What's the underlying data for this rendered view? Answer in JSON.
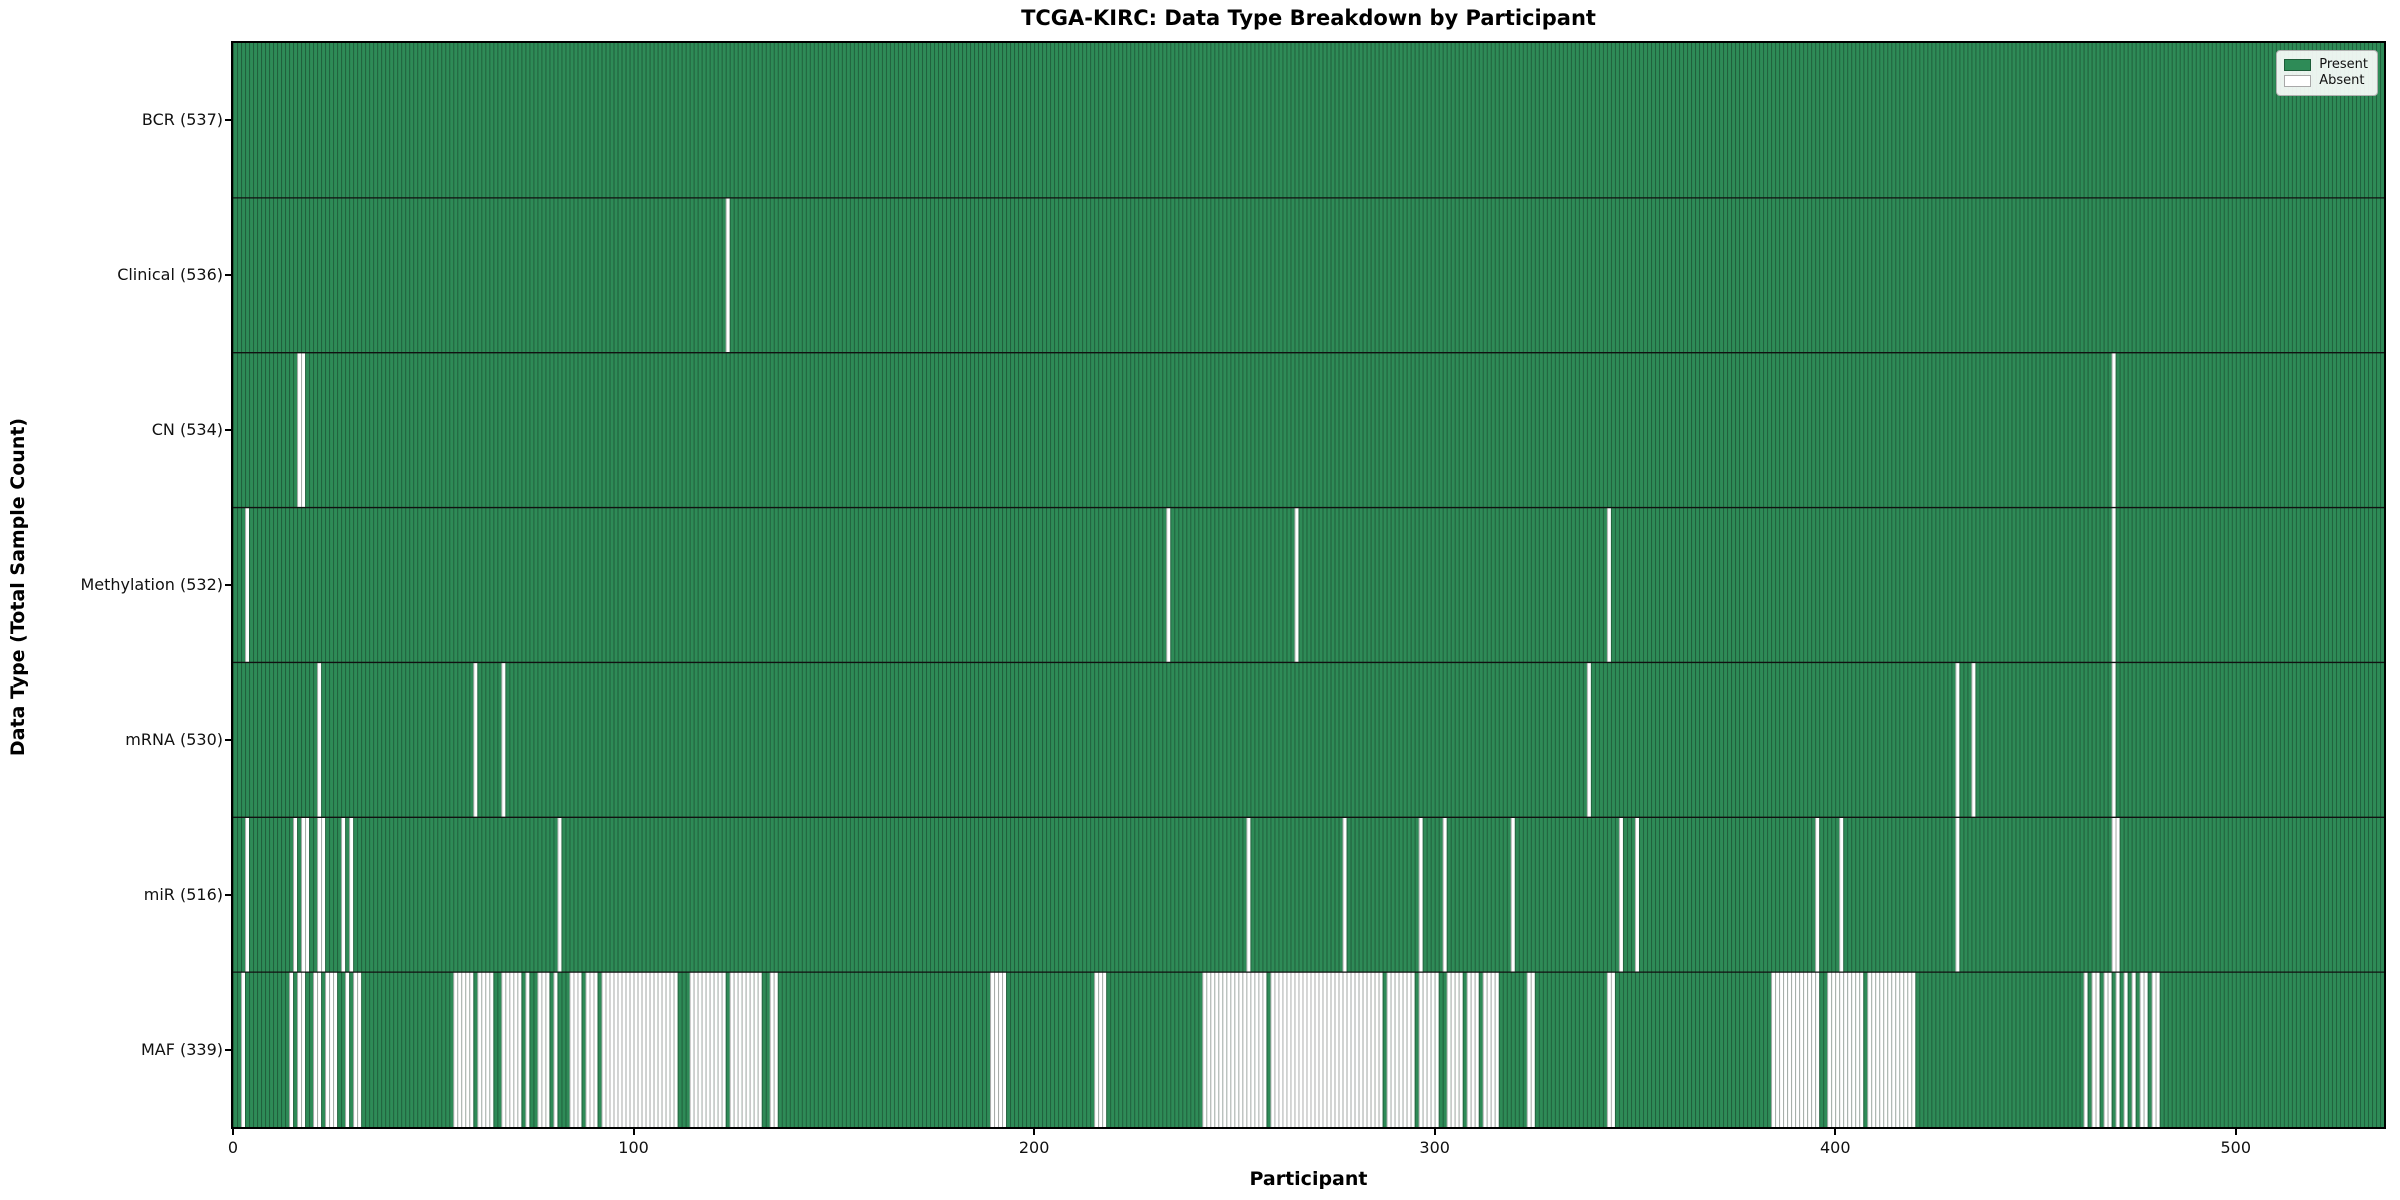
{
  "title": "TCGA-KIRC: Data Type Breakdown by Participant",
  "xlabel": "Participant",
  "ylabel": "Data Type (Total Sample Count)",
  "legend": {
    "present_label": "Present",
    "absent_label": "Absent"
  },
  "colors": {
    "present": "#2e8b57",
    "absent": "#ffffff",
    "bar_edge": "rgba(0,0,0,0.33)",
    "row_separator": "#111111",
    "axes_border": "#000000"
  },
  "chart_data": {
    "type": "heatmap",
    "x_ticks": [
      0,
      100,
      200,
      300,
      400,
      500
    ],
    "n_participants": 537,
    "legend_entries": [
      "Present",
      "Absent"
    ],
    "legend_position": "upper right",
    "rows": [
      {
        "label": "BCR (537)",
        "data_type": "BCR",
        "total": 537,
        "absent": []
      },
      {
        "label": "Clinical (536)",
        "data_type": "Clinical",
        "total": 536,
        "absent": [
          123
        ]
      },
      {
        "label": "CN (534)",
        "data_type": "CN",
        "total": 534,
        "absent": [
          16,
          17,
          469
        ]
      },
      {
        "label": "Methylation (532)",
        "data_type": "Methylation",
        "total": 532,
        "absent": [
          3,
          233,
          265,
          343,
          469
        ]
      },
      {
        "label": "mRNA (530)",
        "data_type": "mRNA",
        "total": 530,
        "absent": [
          21,
          60,
          67,
          338,
          430,
          434,
          469
        ]
      },
      {
        "label": "miR (516)",
        "data_type": "miR",
        "total": 516,
        "absent": [
          3,
          15,
          17,
          18,
          21,
          22,
          27,
          29,
          81,
          253,
          277,
          296,
          302,
          319,
          346,
          350,
          395,
          401,
          430,
          469,
          470
        ]
      },
      {
        "label": "MAF (339)",
        "data_type": "MAF",
        "total": 339,
        "absent": [
          2,
          14,
          16,
          17,
          20,
          21,
          [
            23,
            25
          ],
          28,
          30,
          31,
          [
            55,
            59
          ],
          [
            61,
            64
          ],
          [
            67,
            71
          ],
          73,
          [
            76,
            78
          ],
          80,
          [
            84,
            86
          ],
          [
            88,
            90
          ],
          [
            92,
            110
          ],
          [
            114,
            122
          ],
          [
            124,
            131
          ],
          [
            134,
            135
          ],
          [
            189,
            192
          ],
          [
            215,
            217
          ],
          [
            242,
            257
          ],
          [
            259,
            286
          ],
          [
            288,
            294
          ],
          [
            296,
            300
          ],
          [
            303,
            306
          ],
          [
            308,
            310
          ],
          [
            312,
            315
          ],
          [
            323,
            324
          ],
          [
            343,
            344
          ],
          [
            384,
            395
          ],
          [
            398,
            406
          ],
          [
            408,
            419
          ],
          462,
          464,
          465,
          467,
          468,
          470,
          472,
          474,
          476,
          477,
          479,
          480
        ]
      }
    ]
  }
}
